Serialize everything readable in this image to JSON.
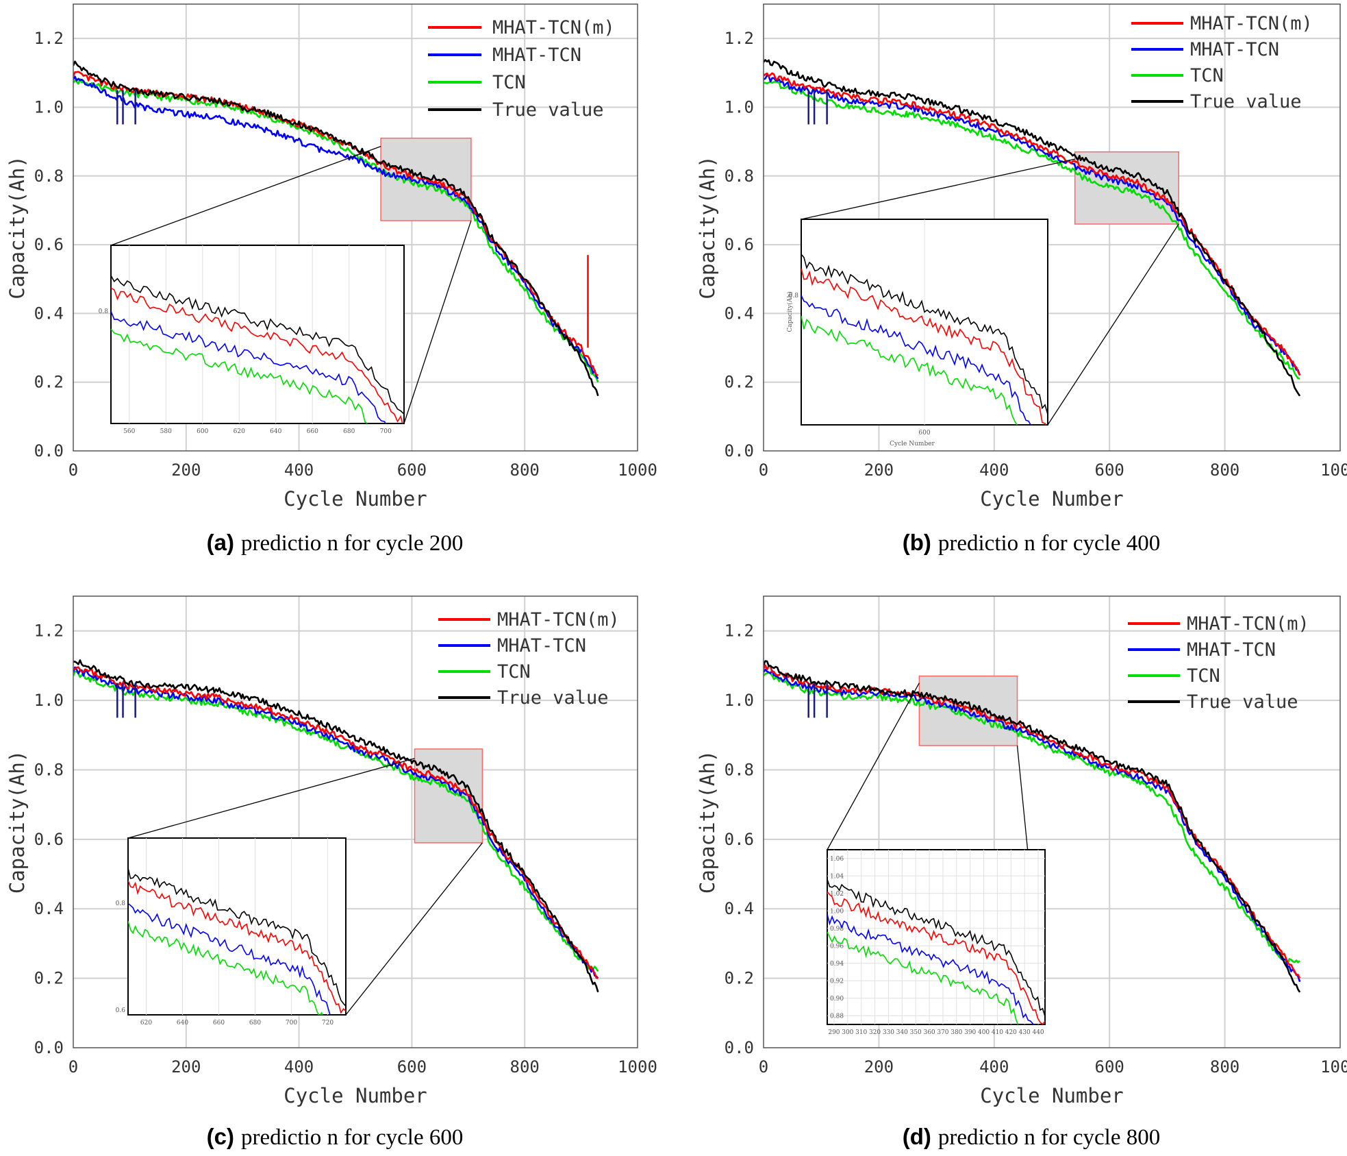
{
  "figure": {
    "panels": [
      {
        "letter": "(a)",
        "caption": "predictio n for cycle 200"
      },
      {
        "letter": "(b)",
        "caption": "predictio n for cycle 400"
      },
      {
        "letter": "(c)",
        "caption": "predictio n for cycle 600"
      },
      {
        "letter": "(d)",
        "caption": "predictio n for cycle 800"
      }
    ]
  },
  "colors": {
    "mhat_tcn_m": "#ff0000",
    "mhat_tcn": "#0000ff",
    "tcn": "#00dd00",
    "true_value": "#000000",
    "zoom_box": "#d9d9d9",
    "zoom_border": "#ff6666"
  },
  "chart_data": [
    {
      "type": "line",
      "title": "predictio n for cycle 200",
      "xlabel": "Cycle Number",
      "ylabel": "Capacity(Ah)",
      "xlim": [
        0,
        1000
      ],
      "ylim": [
        0.0,
        1.3
      ],
      "xticks": [
        "0",
        "200",
        "400",
        "600",
        "800",
        "1000"
      ],
      "yticks": [
        "0.0",
        "0.2",
        "0.4",
        "0.6",
        "0.8",
        "1.0",
        "1.2"
      ],
      "grid": true,
      "legend": [
        "MHAT-TCN(m)",
        "MHAT-TCN",
        "TCN",
        "True value"
      ],
      "legend_position": "top-right",
      "zoom_region": {
        "x": [
          545,
          705
        ],
        "y": [
          0.67,
          0.91
        ]
      },
      "inset": {
        "xticks": [
          "560",
          "580",
          "600",
          "620",
          "640",
          "660",
          "680",
          "700"
        ],
        "ytick": "0.8",
        "xlabel": "",
        "ylabel": ""
      },
      "spike": {
        "x": 912,
        "y": 0.57
      },
      "series": [
        {
          "name": "True value",
          "x": [
            0,
            50,
            100,
            150,
            200,
            250,
            300,
            350,
            400,
            450,
            500,
            550,
            600,
            650,
            700,
            750,
            800,
            850,
            900,
            930
          ],
          "values": [
            1.13,
            1.08,
            1.05,
            1.04,
            1.03,
            1.02,
            1.0,
            0.98,
            0.95,
            0.92,
            0.88,
            0.84,
            0.81,
            0.79,
            0.74,
            0.6,
            0.5,
            0.38,
            0.27,
            0.16
          ]
        },
        {
          "name": "MHAT-TCN(m)",
          "x": [
            0,
            50,
            100,
            150,
            200,
            250,
            300,
            350,
            400,
            450,
            500,
            550,
            600,
            650,
            700,
            750,
            800,
            850,
            900,
            930
          ],
          "values": [
            1.1,
            1.07,
            1.05,
            1.04,
            1.03,
            1.02,
            1.0,
            0.98,
            0.95,
            0.92,
            0.88,
            0.83,
            0.8,
            0.78,
            0.73,
            0.6,
            0.5,
            0.38,
            0.3,
            0.22
          ]
        },
        {
          "name": "MHAT-TCN",
          "x": [
            0,
            50,
            100,
            150,
            200,
            250,
            300,
            350,
            400,
            450,
            500,
            550,
            600,
            650,
            700,
            750,
            800,
            850,
            900,
            930
          ],
          "values": [
            1.09,
            1.05,
            1.01,
            0.99,
            0.98,
            0.97,
            0.95,
            0.93,
            0.9,
            0.87,
            0.85,
            0.81,
            0.79,
            0.77,
            0.72,
            0.59,
            0.49,
            0.37,
            0.29,
            0.21
          ]
        },
        {
          "name": "TCN",
          "x": [
            0,
            50,
            100,
            150,
            200,
            250,
            300,
            350,
            400,
            450,
            500,
            550,
            600,
            650,
            700,
            750,
            800,
            850,
            900,
            930
          ],
          "values": [
            1.08,
            1.06,
            1.04,
            1.03,
            1.02,
            1.01,
            0.99,
            0.97,
            0.94,
            0.91,
            0.86,
            0.81,
            0.78,
            0.76,
            0.71,
            0.57,
            0.47,
            0.36,
            0.28,
            0.2
          ]
        }
      ]
    },
    {
      "type": "line",
      "title": "predictio n for cycle 400",
      "xlabel": "Cycle Number",
      "ylabel": "Capacity(Ah)",
      "xlim": [
        0,
        1000
      ],
      "ylim": [
        0.0,
        1.3
      ],
      "xticks": [
        "0",
        "200",
        "400",
        "600",
        "800",
        "1000"
      ],
      "yticks": [
        "0.0",
        "0.2",
        "0.4",
        "0.6",
        "0.8",
        "1.0",
        "1.2"
      ],
      "grid": true,
      "legend": [
        "MHAT-TCN(m)",
        "MHAT-TCN",
        "TCN",
        "True value"
      ],
      "legend_position": "top-right",
      "zoom_region": {
        "x": [
          540,
          720
        ],
        "y": [
          0.66,
          0.87
        ]
      },
      "inset": {
        "xticks": [
          "600"
        ],
        "ytick": "0.8",
        "xlabel": "Cycle Number",
        "ylabel": "Capacity(Ah)"
      },
      "spike": null,
      "series": [
        {
          "name": "True value",
          "x": [
            0,
            50,
            100,
            150,
            200,
            250,
            300,
            350,
            400,
            450,
            500,
            550,
            600,
            650,
            700,
            750,
            800,
            850,
            900,
            930
          ],
          "values": [
            1.14,
            1.1,
            1.07,
            1.05,
            1.04,
            1.03,
            1.01,
            0.99,
            0.96,
            0.93,
            0.89,
            0.85,
            0.82,
            0.8,
            0.75,
            0.61,
            0.5,
            0.38,
            0.26,
            0.16
          ]
        },
        {
          "name": "MHAT-TCN(m)",
          "x": [
            0,
            50,
            100,
            150,
            200,
            250,
            300,
            350,
            400,
            450,
            500,
            550,
            600,
            650,
            700,
            750,
            800,
            850,
            900,
            930
          ],
          "values": [
            1.1,
            1.07,
            1.05,
            1.03,
            1.02,
            1.01,
            0.99,
            0.97,
            0.94,
            0.91,
            0.87,
            0.83,
            0.8,
            0.78,
            0.73,
            0.62,
            0.5,
            0.38,
            0.3,
            0.22
          ]
        },
        {
          "name": "MHAT-TCN",
          "x": [
            0,
            50,
            100,
            150,
            200,
            250,
            300,
            350,
            400,
            450,
            500,
            550,
            600,
            650,
            700,
            750,
            800,
            850,
            900,
            930
          ],
          "values": [
            1.09,
            1.06,
            1.04,
            1.02,
            1.01,
            1.0,
            0.98,
            0.96,
            0.93,
            0.9,
            0.86,
            0.82,
            0.79,
            0.77,
            0.72,
            0.6,
            0.49,
            0.37,
            0.29,
            0.22
          ]
        },
        {
          "name": "TCN",
          "x": [
            0,
            50,
            100,
            150,
            200,
            250,
            300,
            350,
            400,
            450,
            500,
            550,
            600,
            650,
            700,
            750,
            800,
            850,
            900,
            930
          ],
          "values": [
            1.08,
            1.05,
            1.02,
            1.0,
            0.99,
            0.98,
            0.96,
            0.94,
            0.91,
            0.88,
            0.85,
            0.8,
            0.77,
            0.75,
            0.7,
            0.57,
            0.47,
            0.36,
            0.27,
            0.21
          ]
        }
      ]
    },
    {
      "type": "line",
      "title": "predictio n for cycle 600",
      "xlabel": "Cycle Number",
      "ylabel": "Capacity(Ah)",
      "xlim": [
        0,
        1000
      ],
      "ylim": [
        0.0,
        1.3
      ],
      "xticks": [
        "0",
        "200",
        "400",
        "600",
        "800",
        "1000"
      ],
      "yticks": [
        "0.0",
        "0.2",
        "0.4",
        "0.6",
        "0.8",
        "1.0",
        "1.2"
      ],
      "grid": true,
      "legend": [
        "MHAT-TCN(m)",
        "MHAT-TCN",
        "TCN",
        "True value"
      ],
      "legend_position": "top-right",
      "zoom_region": {
        "x": [
          605,
          725
        ],
        "y": [
          0.59,
          0.86
        ]
      },
      "inset": {
        "xticks": [
          "620",
          "640",
          "660",
          "680",
          "700",
          "720"
        ],
        "ytick": "0.8",
        "ytick_low": "0.6",
        "xlabel": "",
        "ylabel": ""
      },
      "spike": null,
      "series": [
        {
          "name": "True value",
          "x": [
            0,
            50,
            100,
            150,
            200,
            250,
            300,
            350,
            400,
            450,
            500,
            550,
            600,
            650,
            700,
            750,
            800,
            850,
            900,
            930
          ],
          "values": [
            1.12,
            1.08,
            1.05,
            1.04,
            1.04,
            1.03,
            1.01,
            0.99,
            0.96,
            0.93,
            0.89,
            0.86,
            0.82,
            0.8,
            0.75,
            0.6,
            0.5,
            0.38,
            0.26,
            0.16
          ]
        },
        {
          "name": "MHAT-TCN(m)",
          "x": [
            0,
            50,
            100,
            150,
            200,
            250,
            300,
            350,
            400,
            450,
            500,
            550,
            600,
            650,
            700,
            750,
            800,
            850,
            900,
            930
          ],
          "values": [
            1.1,
            1.07,
            1.04,
            1.03,
            1.02,
            1.01,
            0.99,
            0.97,
            0.94,
            0.91,
            0.87,
            0.84,
            0.8,
            0.78,
            0.73,
            0.59,
            0.49,
            0.37,
            0.27,
            0.2
          ]
        },
        {
          "name": "MHAT-TCN",
          "x": [
            0,
            50,
            100,
            150,
            200,
            250,
            300,
            350,
            400,
            450,
            500,
            550,
            600,
            650,
            700,
            750,
            800,
            850,
            900,
            930
          ],
          "values": [
            1.09,
            1.06,
            1.03,
            1.02,
            1.01,
            1.0,
            0.98,
            0.96,
            0.93,
            0.9,
            0.86,
            0.83,
            0.79,
            0.77,
            0.72,
            0.58,
            0.48,
            0.36,
            0.26,
            0.2
          ]
        },
        {
          "name": "TCN",
          "x": [
            0,
            50,
            100,
            150,
            200,
            250,
            300,
            350,
            400,
            450,
            500,
            550,
            600,
            650,
            700,
            750,
            800,
            850,
            900,
            930
          ],
          "values": [
            1.08,
            1.05,
            1.02,
            1.01,
            1.0,
            0.99,
            0.97,
            0.95,
            0.92,
            0.89,
            0.85,
            0.82,
            0.78,
            0.76,
            0.71,
            0.56,
            0.46,
            0.35,
            0.25,
            0.22
          ]
        }
      ]
    },
    {
      "type": "line",
      "title": "predictio n for cycle 800",
      "xlabel": "Cycle Number",
      "ylabel": "Capacity(Ah)",
      "xlim": [
        0,
        1000
      ],
      "ylim": [
        0.0,
        1.3
      ],
      "xticks": [
        "0",
        "200",
        "400",
        "600",
        "800",
        "1000"
      ],
      "yticks": [
        "0.0",
        "0.2",
        "0.4",
        "0.6",
        "0.8",
        "1.0",
        "1.2"
      ],
      "grid": true,
      "legend": [
        "MHAT-TCN(m)",
        "MHAT-TCN",
        "TCN",
        "True value"
      ],
      "legend_position": "top-right",
      "zoom_region": {
        "x": [
          270,
          440
        ],
        "y": [
          0.87,
          1.07
        ]
      },
      "inset": {
        "xticks": [
          "290",
          "300",
          "310",
          "320",
          "330",
          "340",
          "350",
          "360",
          "370",
          "380",
          "390",
          "400",
          "410",
          "420",
          "430",
          "440"
        ],
        "yticks": [
          "1.06",
          "1.04",
          "1.02",
          "1.00",
          "0.98",
          "0.96",
          "0.94",
          "0.92",
          "0.90",
          "0.88"
        ],
        "xlabel": "",
        "ylabel": ""
      },
      "spike": null,
      "series": [
        {
          "name": "True value",
          "x": [
            0,
            50,
            100,
            150,
            200,
            250,
            300,
            350,
            400,
            450,
            500,
            550,
            600,
            650,
            700,
            750,
            800,
            850,
            900,
            930
          ],
          "values": [
            1.11,
            1.07,
            1.05,
            1.04,
            1.03,
            1.02,
            1.01,
            0.99,
            0.96,
            0.93,
            0.89,
            0.86,
            0.82,
            0.8,
            0.76,
            0.6,
            0.5,
            0.38,
            0.26,
            0.16
          ]
        },
        {
          "name": "MHAT-TCN(m)",
          "x": [
            0,
            50,
            100,
            150,
            200,
            250,
            300,
            350,
            400,
            450,
            500,
            550,
            600,
            650,
            700,
            750,
            800,
            850,
            900,
            930
          ],
          "values": [
            1.1,
            1.06,
            1.04,
            1.03,
            1.03,
            1.02,
            1.0,
            0.98,
            0.95,
            0.92,
            0.88,
            0.85,
            0.81,
            0.79,
            0.75,
            0.6,
            0.5,
            0.38,
            0.27,
            0.2
          ]
        },
        {
          "name": "MHAT-TCN",
          "x": [
            0,
            50,
            100,
            150,
            200,
            250,
            300,
            350,
            400,
            450,
            500,
            550,
            600,
            650,
            700,
            750,
            800,
            850,
            900,
            930
          ],
          "values": [
            1.09,
            1.05,
            1.03,
            1.02,
            1.02,
            1.01,
            0.99,
            0.97,
            0.94,
            0.91,
            0.87,
            0.84,
            0.8,
            0.78,
            0.74,
            0.59,
            0.49,
            0.37,
            0.26,
            0.19
          ]
        },
        {
          "name": "TCN",
          "x": [
            0,
            50,
            100,
            150,
            200,
            250,
            300,
            350,
            400,
            450,
            500,
            550,
            600,
            650,
            700,
            750,
            800,
            850,
            900,
            930
          ],
          "values": [
            1.08,
            1.04,
            1.02,
            1.01,
            1.01,
            1.0,
            0.98,
            0.96,
            0.93,
            0.9,
            0.86,
            0.83,
            0.79,
            0.77,
            0.71,
            0.55,
            0.46,
            0.36,
            0.25,
            0.25
          ]
        }
      ]
    }
  ]
}
